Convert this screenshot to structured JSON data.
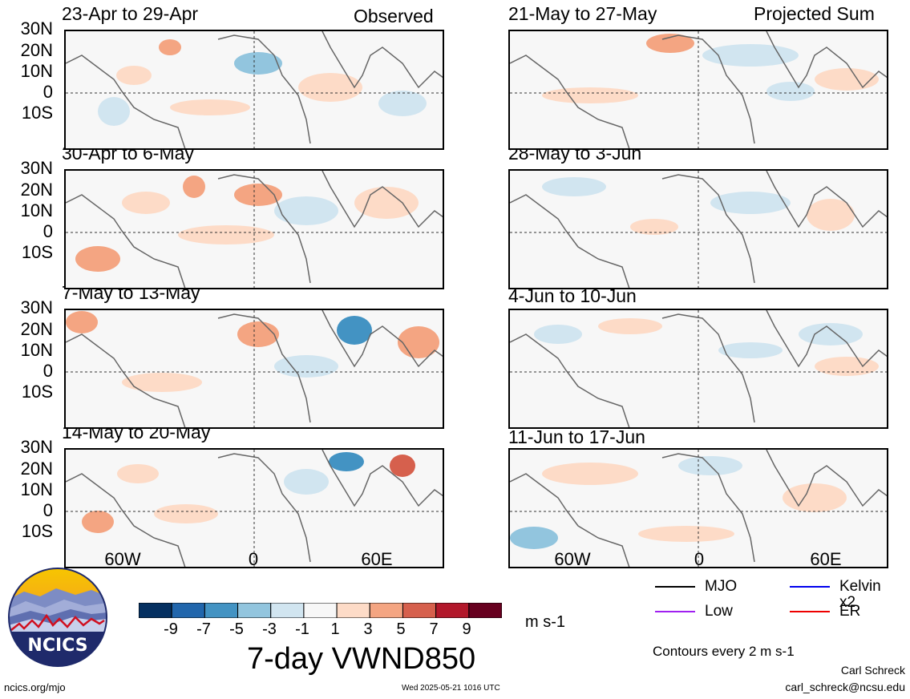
{
  "map_title": "7-day VWND850",
  "units": "m s-1",
  "columns": [
    {
      "header": "Observed",
      "panels": [
        "23-Apr to 29-Apr",
        "30-Apr to 6-May",
        "7-May to 13-May",
        "14-May to 20-May"
      ]
    },
    {
      "header": "Projected Sum",
      "panels": [
        "21-May to 27-May",
        "28-May to 3-Jun",
        "4-Jun to 10-Jun",
        "11-Jun to 17-Jun"
      ]
    }
  ],
  "lat_labels": [
    "30N",
    "20N",
    "10N",
    "0",
    "10S"
  ],
  "lon_labels": [
    "60W",
    "0",
    "60E"
  ],
  "colorbar": {
    "tick_labels": [
      "-9",
      "-7",
      "-5",
      "-3",
      "-1",
      "1",
      "3",
      "5",
      "7",
      "9"
    ],
    "colors": [
      "#053061",
      "#2166ac",
      "#4393c3",
      "#92c5de",
      "#d1e5f0",
      "#f7f7f7",
      "#fddbc7",
      "#f4a582",
      "#d6604d",
      "#b2182b",
      "#67001f"
    ]
  },
  "legend": {
    "items": [
      {
        "label": "MJO",
        "color": "#000000"
      },
      {
        "label": "Kelvin x2",
        "color": "#0000ee"
      },
      {
        "label": "Low",
        "color": "#a020f0"
      },
      {
        "label": "ER",
        "color": "#ee0000"
      }
    ],
    "contour_note": "Contours every 2 m s-1"
  },
  "footer": {
    "logo_text": "NCICS",
    "url": "ncics.org/mjo",
    "timestamp": "Wed 2025-05-21 1016 UTC",
    "author": "Carl Schreck",
    "email": "carl_schreck@ncsu.edu"
  }
}
